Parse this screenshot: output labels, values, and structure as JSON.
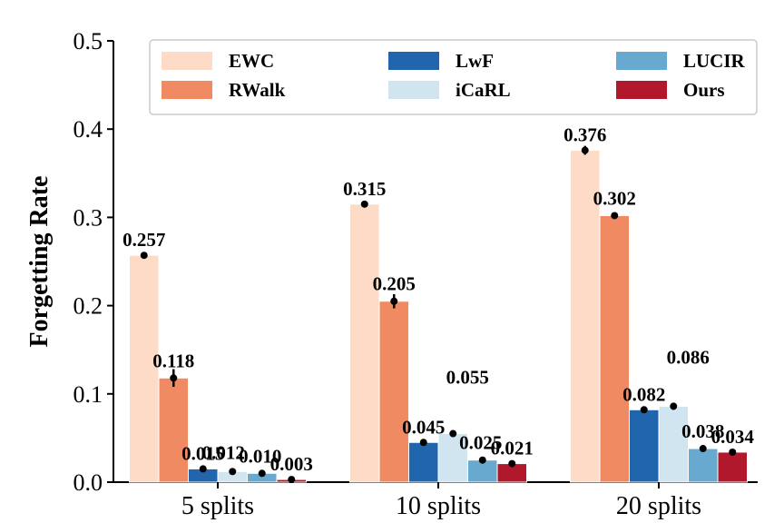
{
  "chart_data": {
    "type": "bar",
    "title": "",
    "xlabel": "",
    "ylabel": "Forgetting Rate",
    "ylim": [
      0,
      0.5
    ],
    "yticks": [
      "0.0",
      "0.1",
      "0.2",
      "0.3",
      "0.4",
      "0.5"
    ],
    "categories": [
      "5 splits",
      "10 splits",
      "20 splits"
    ],
    "legend_position": "top",
    "series": [
      {
        "name": "EWC",
        "color": "#fddbc7",
        "values": [
          0.257,
          0.315,
          0.376
        ],
        "labels": [
          "0.257",
          "0.315",
          "0.376"
        ],
        "errors": [
          0.002,
          0.002,
          0.005
        ]
      },
      {
        "name": "RWalk",
        "color": "#ef8a62",
        "values": [
          0.118,
          0.205,
          0.302
        ],
        "labels": [
          "0.118",
          "0.205",
          "0.302"
        ],
        "errors": [
          0.01,
          0.008,
          0.002
        ]
      },
      {
        "name": "LwF",
        "color": "#2166ac",
        "values": [
          0.015,
          0.045,
          0.082
        ],
        "labels": [
          "0.015",
          "0.045",
          "0.082"
        ],
        "errors": [
          0.001,
          0.001,
          0.001
        ]
      },
      {
        "name": "iCaRL",
        "color": "#d1e5f0",
        "values": [
          0.012,
          0.055,
          0.086
        ],
        "labels": [
          "0.012",
          "0.055",
          "0.086"
        ],
        "errors": [
          0.001,
          0.001,
          0.004
        ]
      },
      {
        "name": "LUCIR",
        "color": "#67a9cf",
        "values": [
          0.01,
          0.025,
          0.038
        ],
        "labels": [
          "0.010",
          "0.025",
          "0.038"
        ],
        "errors": [
          0.001,
          0.001,
          0.001
        ]
      },
      {
        "name": "Ours",
        "color": "#b2182b",
        "values": [
          0.003,
          0.021,
          0.034
        ],
        "labels": [
          "0.003",
          "0.021",
          "0.034"
        ],
        "errors": [
          0.001,
          0.001,
          0.001
        ]
      }
    ]
  }
}
